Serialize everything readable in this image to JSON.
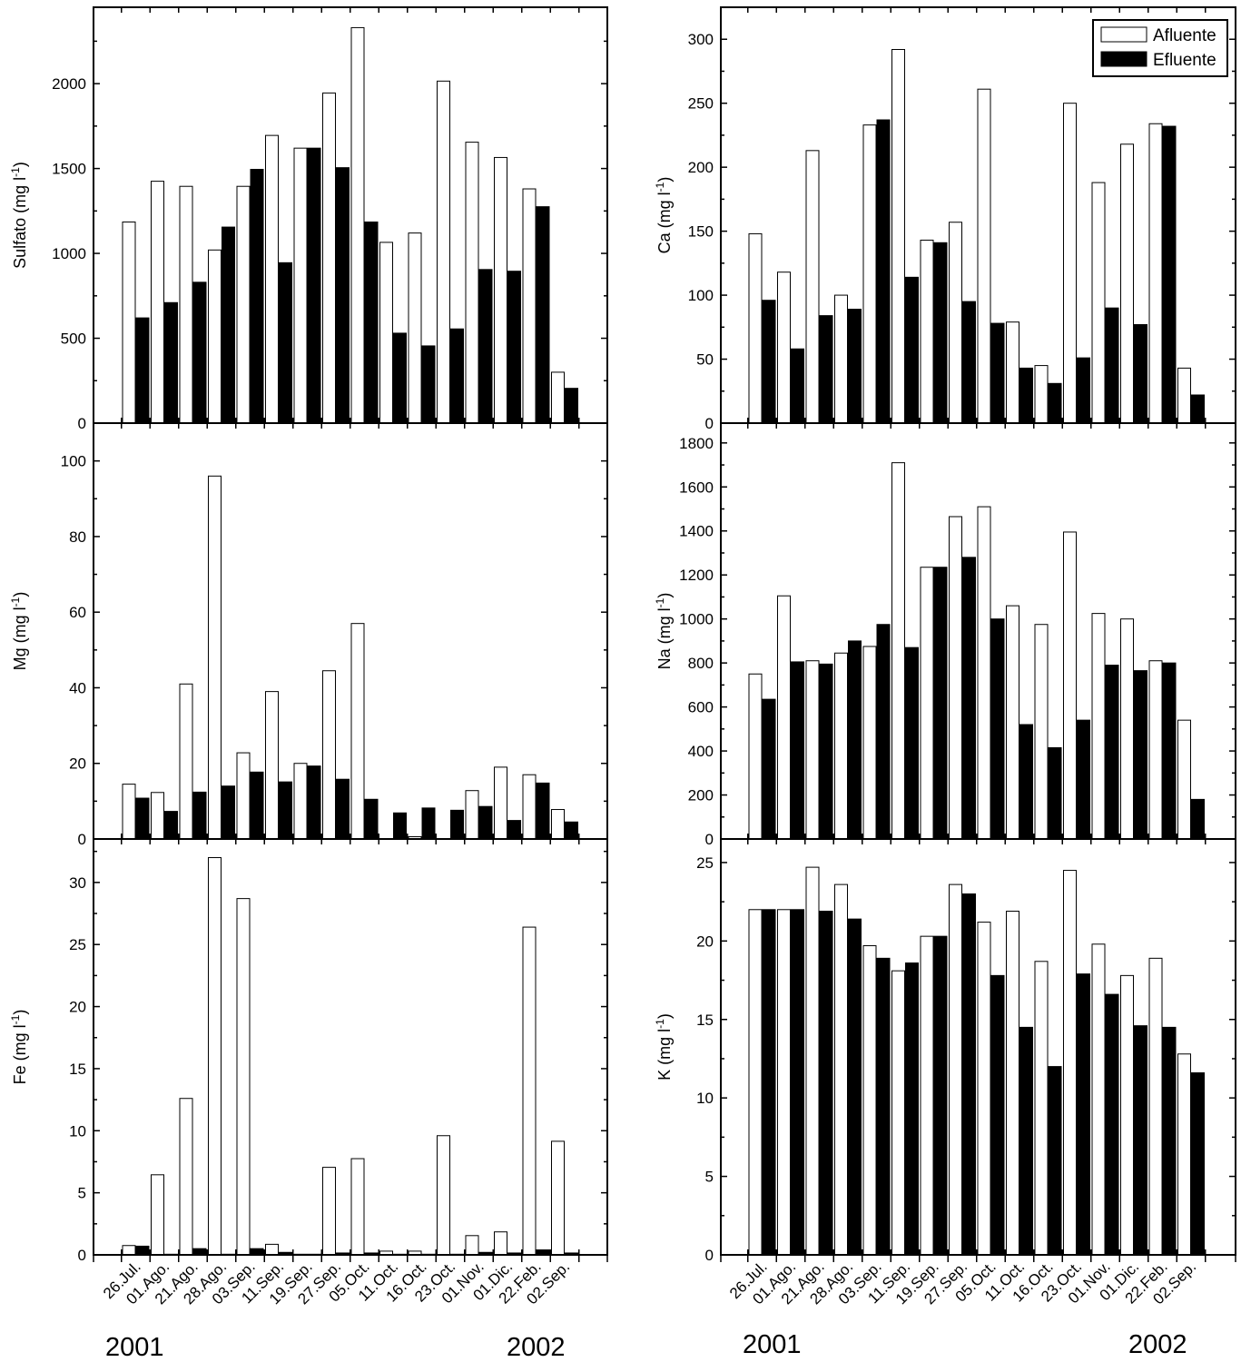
{
  "chart_data": [
    {
      "id": "sulfato",
      "type": "bar",
      "ylabel": "Sulfato (mg l-1)",
      "ylabel_main": "Sulfato (mg l",
      "ylabel_sup": "-1",
      "ylabel_end": ")",
      "ylim": [
        0,
        2450
      ],
      "yticks": [
        0,
        500,
        1000,
        1500,
        2000
      ],
      "series": [
        {
          "name": "Afluente",
          "values": [
            1185,
            1425,
            1395,
            1020,
            1395,
            1695,
            1620,
            1945,
            2330,
            1065,
            1120,
            2015,
            1655,
            1565,
            1380,
            300
          ]
        },
        {
          "name": "Efluente",
          "values": [
            620,
            710,
            830,
            1155,
            1495,
            945,
            1620,
            1505,
            1185,
            530,
            455,
            555,
            905,
            895,
            1275,
            205
          ]
        }
      ]
    },
    {
      "id": "ca",
      "type": "bar",
      "ylabel": "Ca (mg l-1)",
      "ylabel_main": "Ca (mg l",
      "ylabel_sup": "-1",
      "ylabel_end": ")",
      "ylim": [
        0,
        325
      ],
      "yticks": [
        0,
        50,
        100,
        150,
        200,
        250,
        300
      ],
      "series": [
        {
          "name": "Afluente",
          "values": [
            148,
            118,
            213,
            100,
            233,
            292,
            143,
            157,
            261,
            79,
            45,
            250,
            188,
            218,
            234,
            43
          ]
        },
        {
          "name": "Efluente",
          "values": [
            96,
            58,
            84,
            89,
            237,
            114,
            141,
            95,
            78,
            43,
            31,
            51,
            90,
            77,
            232,
            22
          ]
        }
      ]
    },
    {
      "id": "mg",
      "type": "bar",
      "ylabel": "Mg (mg l-1)",
      "ylabel_main": "Mg (mg l",
      "ylabel_sup": "-1",
      "ylabel_end": ")",
      "ylim": [
        0,
        110
      ],
      "yticks": [
        0,
        20,
        40,
        60,
        80,
        100
      ],
      "series": [
        {
          "name": "Afluente",
          "values": [
            14.5,
            12.3,
            41,
            96,
            22.8,
            39,
            20,
            44.5,
            57,
            0,
            0.6,
            0,
            12.8,
            19,
            17,
            7.8
          ]
        },
        {
          "name": "Efluente",
          "values": [
            10.8,
            7.3,
            12.4,
            14,
            17.7,
            15.1,
            19.3,
            15.8,
            10.5,
            6.9,
            8.2,
            7.6,
            8.6,
            4.9,
            14.8,
            4.5
          ]
        }
      ]
    },
    {
      "id": "na",
      "type": "bar",
      "ylabel": "Na (mg l-1)",
      "ylabel_main": "Na (mg l",
      "ylabel_sup": "-1",
      "ylabel_end": ")",
      "ylim": [
        0,
        1890
      ],
      "yticks": [
        0,
        200,
        400,
        600,
        800,
        1000,
        1200,
        1400,
        1600,
        1800
      ],
      "series": [
        {
          "name": "Afluente",
          "values": [
            750,
            1105,
            810,
            845,
            875,
            1710,
            1235,
            1465,
            1510,
            1060,
            975,
            1395,
            1025,
            1000,
            810,
            540
          ]
        },
        {
          "name": "Efluente",
          "values": [
            635,
            805,
            795,
            900,
            975,
            870,
            1235,
            1280,
            1000,
            520,
            415,
            540,
            790,
            765,
            800,
            180
          ]
        }
      ]
    },
    {
      "id": "fe",
      "type": "bar",
      "ylabel": "Fe (mg l-1)",
      "ylabel_main": "Fe (mg l",
      "ylabel_sup": "-1",
      "ylabel_end": ")",
      "ylim": [
        0,
        33.5
      ],
      "yticks": [
        0,
        5,
        10,
        15,
        20,
        25,
        30
      ],
      "series": [
        {
          "name": "Afluente",
          "values": [
            0.75,
            6.45,
            12.6,
            32,
            28.7,
            0.85,
            0.05,
            7.05,
            7.75,
            0.3,
            0.3,
            9.6,
            1.55,
            1.85,
            26.4,
            9.15
          ]
        },
        {
          "name": "Efluente",
          "values": [
            0.7,
            0.05,
            0.5,
            0.05,
            0.5,
            0.2,
            0.05,
            0.15,
            0.15,
            0.05,
            0.05,
            0.05,
            0.2,
            0.15,
            0.4,
            0.15
          ]
        }
      ]
    },
    {
      "id": "k",
      "type": "bar",
      "ylabel": "K (mg l-1)",
      "ylabel_main": "K (mg l",
      "ylabel_sup": "-1",
      "ylabel_end": ")",
      "ylim": [
        0,
        26.5
      ],
      "yticks": [
        0,
        5,
        10,
        15,
        20,
        25
      ],
      "series": [
        {
          "name": "Afluente",
          "values": [
            22,
            22,
            24.7,
            23.6,
            19.7,
            18.1,
            20.3,
            23.6,
            21.2,
            21.9,
            18.7,
            24.5,
            19.8,
            17.8,
            18.9,
            12.8
          ]
        },
        {
          "name": "Efluente",
          "values": [
            22,
            22,
            21.9,
            21.4,
            18.9,
            18.6,
            20.3,
            23,
            17.8,
            14.5,
            12,
            17.9,
            16.6,
            14.6,
            14.5,
            11.6
          ]
        }
      ]
    }
  ],
  "categories": [
    "26.Jul.",
    "01.Ago.",
    "21.Ago.",
    "28.Ago.",
    "03.Sep.",
    "11.Sep.",
    "19.Sep.",
    "27.Sep.",
    "05.Oct.",
    "11.Oct.",
    "16.Oct.",
    "23.Oct.",
    "01.Nov.",
    "01.Dic.",
    "22.Feb.",
    "02.Sep."
  ],
  "legend": {
    "position": "top-right",
    "items": [
      "Afluente",
      "Efluente"
    ]
  },
  "year_labels": {
    "start": "2001",
    "end": "2002"
  },
  "colors": {
    "afluente_fill": "#ffffff",
    "efluente_fill": "#000000",
    "stroke": "#000000"
  }
}
